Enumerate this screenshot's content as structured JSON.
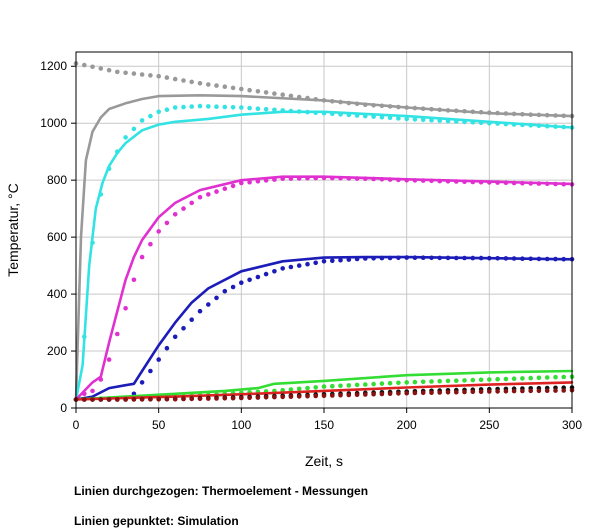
{
  "chart_data": {
    "type": "line",
    "xlabel": "Zeit, s",
    "ylabel": "Temperatur, °C",
    "xlim": [
      0,
      300
    ],
    "ylim": [
      0,
      1250
    ],
    "xticks": [
      0,
      50,
      100,
      150,
      200,
      250,
      300
    ],
    "yticks": [
      0,
      200,
      400,
      600,
      800,
      1000,
      1200
    ],
    "grid": true,
    "series": [
      {
        "color": "#999999",
        "style": "solid",
        "x": [
          0,
          3,
          6,
          10,
          15,
          20,
          30,
          40,
          50,
          75,
          100,
          150,
          200,
          250,
          300
        ],
        "y": [
          30,
          600,
          870,
          970,
          1020,
          1050,
          1070,
          1085,
          1095,
          1098,
          1095,
          1080,
          1055,
          1035,
          1025
        ]
      },
      {
        "color": "#999999",
        "style": "dotted",
        "x": [
          0,
          25,
          50,
          75,
          100,
          125,
          150,
          175,
          200,
          225,
          250,
          275,
          300
        ],
        "y": [
          1210,
          1180,
          1165,
          1140,
          1120,
          1100,
          1080,
          1065,
          1055,
          1045,
          1037,
          1030,
          1025
        ]
      },
      {
        "color": "#33e3e3",
        "style": "solid",
        "x": [
          0,
          4,
          8,
          12,
          16,
          20,
          25,
          30,
          40,
          50,
          60,
          80,
          100,
          125,
          150,
          200,
          250,
          300
        ],
        "y": [
          30,
          150,
          500,
          700,
          790,
          850,
          895,
          930,
          975,
          995,
          1005,
          1015,
          1030,
          1040,
          1040,
          1025,
          1005,
          985
        ]
      },
      {
        "color": "#33e3e3",
        "style": "dotted",
        "x": [
          0,
          5,
          10,
          15,
          20,
          25,
          30,
          40,
          50,
          60,
          75,
          100,
          125,
          150,
          200,
          250,
          300
        ],
        "y": [
          30,
          250,
          580,
          750,
          840,
          900,
          950,
          1010,
          1040,
          1055,
          1060,
          1055,
          1045,
          1035,
          1015,
          1000,
          985
        ]
      },
      {
        "color": "#e030d0",
        "style": "solid",
        "x": [
          0,
          5,
          10,
          15,
          20,
          25,
          30,
          35,
          40,
          50,
          60,
          75,
          100,
          125,
          150,
          175,
          200,
          250,
          300
        ],
        "y": [
          30,
          60,
          90,
          110,
          230,
          340,
          450,
          530,
          590,
          670,
          720,
          765,
          800,
          812,
          812,
          808,
          803,
          795,
          787
        ]
      },
      {
        "color": "#e030d0",
        "style": "dotted",
        "x": [
          0,
          5,
          10,
          15,
          20,
          25,
          30,
          35,
          40,
          50,
          60,
          75,
          100,
          125,
          150,
          175,
          200,
          250,
          300
        ],
        "y": [
          30,
          50,
          60,
          100,
          170,
          260,
          350,
          450,
          530,
          620,
          680,
          740,
          790,
          805,
          808,
          805,
          800,
          792,
          785
        ]
      },
      {
        "color": "#1c1cb8",
        "style": "solid",
        "x": [
          0,
          10,
          20,
          30,
          35,
          40,
          50,
          60,
          70,
          80,
          100,
          125,
          150,
          175,
          200,
          250,
          300
        ],
        "y": [
          30,
          40,
          70,
          80,
          85,
          130,
          220,
          300,
          370,
          420,
          480,
          515,
          528,
          530,
          530,
          526,
          522
        ]
      },
      {
        "color": "#1c1cb8",
        "style": "dotted",
        "x": [
          0,
          20,
          30,
          35,
          40,
          50,
          60,
          75,
          90,
          100,
          125,
          150,
          175,
          200,
          250,
          300
        ],
        "y": [
          30,
          30,
          35,
          50,
          90,
          170,
          250,
          340,
          410,
          440,
          490,
          515,
          525,
          528,
          526,
          522
        ]
      },
      {
        "color": "#33dd33",
        "style": "solid",
        "x": [
          0,
          30,
          60,
          90,
          110,
          120,
          150,
          200,
          250,
          300
        ],
        "y": [
          30,
          40,
          50,
          60,
          70,
          85,
          95,
          115,
          125,
          130
        ]
      },
      {
        "color": "#33dd33",
        "style": "dotted",
        "x": [
          0,
          30,
          60,
          90,
          120,
          150,
          200,
          250,
          300
        ],
        "y": [
          30,
          35,
          40,
          50,
          60,
          75,
          90,
          100,
          110
        ]
      },
      {
        "color": "#dd2222",
        "style": "solid",
        "x": [
          0,
          30,
          60,
          100,
          150,
          200,
          250,
          300
        ],
        "y": [
          30,
          35,
          40,
          48,
          60,
          72,
          82,
          90
        ]
      },
      {
        "color": "#111111",
        "style": "dotted",
        "x": [
          0,
          30,
          60,
          100,
          150,
          200,
          250,
          300
        ],
        "y": [
          30,
          30,
          32,
          38,
          48,
          58,
          66,
          72
        ]
      },
      {
        "color": "#881111",
        "style": "dotted",
        "x": [
          0,
          30,
          60,
          100,
          150,
          200,
          250,
          300
        ],
        "y": [
          30,
          30,
          31,
          35,
          43,
          52,
          58,
          62
        ]
      }
    ]
  },
  "captions": {
    "line1": "Linien durchgezogen: Thermoelement - Messungen",
    "line2": "Linien gepunktet: Simulation"
  }
}
